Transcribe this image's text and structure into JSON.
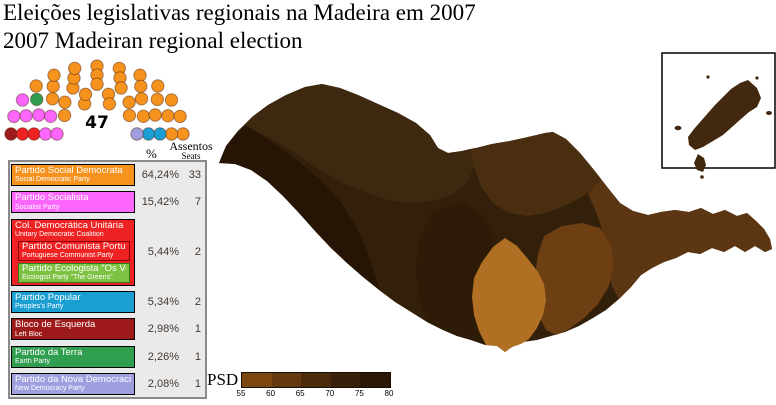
{
  "title_pt": "Eleições legislativas regionais na Madeira em 2007",
  "title_en": "2007 Madeiran regional election",
  "parliament": {
    "total_seats": 47,
    "total_label": "47",
    "parties": [
      {
        "label": "Bloco de Esquerda",
        "seats": 1,
        "color": "#9e1a1a"
      },
      {
        "label": "Col. Democrática Unitária",
        "seats": 2,
        "color": "#ee2222"
      },
      {
        "label": "Partido Socialista",
        "seats": 7,
        "color": "#fc66fc"
      },
      {
        "label": "Partido da Terra",
        "seats": 1,
        "color": "#2f9e4e"
      },
      {
        "label": "Partido Social Democrata",
        "seats": 33,
        "color": "#f6921e"
      },
      {
        "label": "Partido Popular",
        "seats": 2,
        "color": "#1b9ed2"
      },
      {
        "label": "Partido da Nova Democracia",
        "seats": 1,
        "color": "#9f9fe0"
      }
    ]
  },
  "results_table": {
    "header_pct": "%",
    "header_seats_pt": "Assentos",
    "header_seats_en": "Seats",
    "rows": [
      {
        "pt": "Partido Social Democrata",
        "en": "Social Democratic Party",
        "color": "#f6921e",
        "pct": "64,24%",
        "seats": "33"
      },
      {
        "pt": "Partido Socialista",
        "en": "Socialist Party",
        "color": "#fc66fc",
        "pct": "15,42%",
        "seats": "7"
      },
      {
        "pt": "Col. Democrática Unitária",
        "en": "Unitary Democratic Coalition",
        "color": "#ee2222",
        "pct": "5,44%",
        "seats": "2",
        "members": [
          {
            "pt": "Partido Comunista Português",
            "en": "Portuguese Communist Party",
            "color": "#ee2222",
            "border": "#8b0000"
          },
          {
            "pt": "Partido Ecologista \"Os Verdes\"",
            "en": "Ecologist Party \"The Greens\"",
            "color": "#7dc242",
            "border": "#2e7d1e"
          }
        ]
      },
      {
        "pt": "Partido Popular",
        "en": "Peoples's Party",
        "color": "#1b9ed2",
        "pct": "5,34%",
        "seats": "2"
      },
      {
        "pt": "Bloco de Esquerda",
        "en": "Left Bloc",
        "color": "#9e1a1a",
        "pct": "2,98%",
        "seats": "1"
      },
      {
        "pt": "Partido da Terra",
        "en": "Earth Party",
        "color": "#2f9e4e",
        "pct": "2,26%",
        "seats": "1"
      },
      {
        "pt": "Partido da Nova Democracia",
        "en": "New Democracy Party",
        "color": "#9f9fe0",
        "pct": "2,08%",
        "seats": "1"
      }
    ]
  },
  "map": {
    "regions": {
      "base": "#33200b",
      "west": "#261505",
      "north": "#3e2810",
      "north_center": "#4a2e10",
      "east": "#5c3512",
      "southeast": "#6e3f13",
      "center_south": "#2d1b08",
      "funchal_light": "#b06f23",
      "inset_island": "#42280e"
    },
    "inset_border": "#000000"
  },
  "scale": {
    "label": "PSD",
    "segments": [
      "#7e470e",
      "#64390f",
      "#4c2b0c",
      "#38200a",
      "#2a1706"
    ],
    "ticks": [
      "55",
      "60",
      "65",
      "70",
      "75",
      "80"
    ]
  },
  "chart_data": {
    "type": "table",
    "title": "Eleições legislativas regionais na Madeira em 2007 / 2007 Madeiran regional election",
    "categories": [
      "Partido Social Democrata",
      "Partido Socialista",
      "Col. Democrática Unitária",
      "Partido Popular",
      "Bloco de Esquerda",
      "Partido da Terra",
      "Partido da Nova Democracia"
    ],
    "series": [
      {
        "name": "vote_share_pct",
        "values": [
          64.24,
          15.42,
          5.44,
          5.34,
          2.98,
          2.26,
          2.08
        ]
      },
      {
        "name": "seats",
        "values": [
          33,
          7,
          2,
          2,
          1,
          1,
          1
        ]
      }
    ],
    "total_seats": 47,
    "choropleth_scale": {
      "variable": "PSD vote share %",
      "range": [
        55,
        80
      ],
      "step": 5
    }
  }
}
